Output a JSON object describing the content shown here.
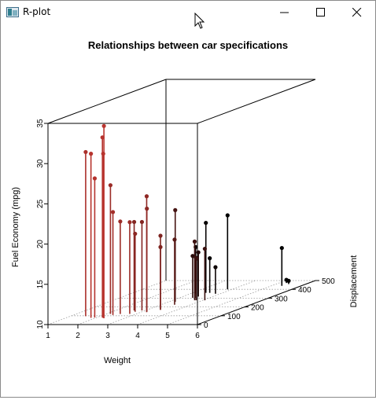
{
  "window": {
    "title": "R-plot",
    "minimize_icon": "minimize-icon",
    "maximize_icon": "maximize-icon",
    "close_icon": "close-icon"
  },
  "chart_data": {
    "type": "scatter",
    "subtype": "scatterplot3d with vertical drop lines (type h)",
    "title": "Relationships between car specifications",
    "xlabel": "Weight",
    "ylabel": "Displacement",
    "zlabel": "Fuel Economy (mpg)",
    "xlim": [
      1,
      6
    ],
    "ylim": [
      0,
      500
    ],
    "zlim": [
      10,
      35
    ],
    "x_ticks": [
      "1",
      "2",
      "3",
      "4",
      "5",
      "6"
    ],
    "y_ticks": [
      "0",
      "100",
      "200",
      "300",
      "400",
      "500"
    ],
    "z_ticks": [
      "10",
      "15",
      "20",
      "25",
      "30",
      "35"
    ],
    "grid": true,
    "color_gradient": {
      "light": "#E6413A",
      "dark": "#000000"
    },
    "points": [
      {
        "x": 2.2,
        "y": 78.7,
        "z": 32.4
      },
      {
        "x": 2.25,
        "y": 75.7,
        "z": 30.4
      },
      {
        "x": 2.31,
        "y": 71.1,
        "z": 33.9
      },
      {
        "x": 1.84,
        "y": 75.7,
        "z": 30.4
      },
      {
        "x": 1.94,
        "y": 79.0,
        "z": 27.3
      },
      {
        "x": 1.51,
        "y": 95.1,
        "z": 30.4
      },
      {
        "x": 2.14,
        "y": 120.3,
        "z": 26.0
      },
      {
        "x": 2.47,
        "y": 120.1,
        "z": 21.5
      },
      {
        "x": 2.32,
        "y": 108.0,
        "z": 22.8
      },
      {
        "x": 2.62,
        "y": 160.0,
        "z": 21.0
      },
      {
        "x": 2.78,
        "y": 121.0,
        "z": 21.4
      },
      {
        "x": 2.88,
        "y": 160.0,
        "z": 21.0
      },
      {
        "x": 3.15,
        "y": 146.7,
        "z": 22.8
      },
      {
        "x": 3.19,
        "y": 140.8,
        "z": 24.4
      },
      {
        "x": 2.77,
        "y": 145.0,
        "z": 19.7
      },
      {
        "x": 3.44,
        "y": 167.6,
        "z": 19.2
      },
      {
        "x": 3.44,
        "y": 167.6,
        "z": 17.8
      },
      {
        "x": 3.46,
        "y": 225.0,
        "z": 18.1
      },
      {
        "x": 3.22,
        "y": 258.0,
        "z": 21.4
      },
      {
        "x": 3.44,
        "y": 360.0,
        "z": 18.7
      },
      {
        "x": 3.57,
        "y": 360.0,
        "z": 14.3
      },
      {
        "x": 3.84,
        "y": 350.0,
        "z": 13.3
      },
      {
        "x": 3.52,
        "y": 318.0,
        "z": 15.5
      },
      {
        "x": 3.44,
        "y": 304.0,
        "z": 15.2
      },
      {
        "x": 3.73,
        "y": 275.8,
        "z": 17.3
      },
      {
        "x": 3.78,
        "y": 275.8,
        "z": 15.2
      },
      {
        "x": 4.07,
        "y": 275.8,
        "z": 16.4
      },
      {
        "x": 3.57,
        "y": 301.0,
        "z": 15.0
      },
      {
        "x": 3.17,
        "y": 351.0,
        "z": 15.8
      },
      {
        "x": 3.85,
        "y": 400.0,
        "z": 19.2
      },
      {
        "x": 5.25,
        "y": 472.0,
        "z": 10.4
      },
      {
        "x": 5.42,
        "y": 460.0,
        "z": 10.4
      },
      {
        "x": 5.35,
        "y": 440.0,
        "z": 14.7
      }
    ]
  }
}
